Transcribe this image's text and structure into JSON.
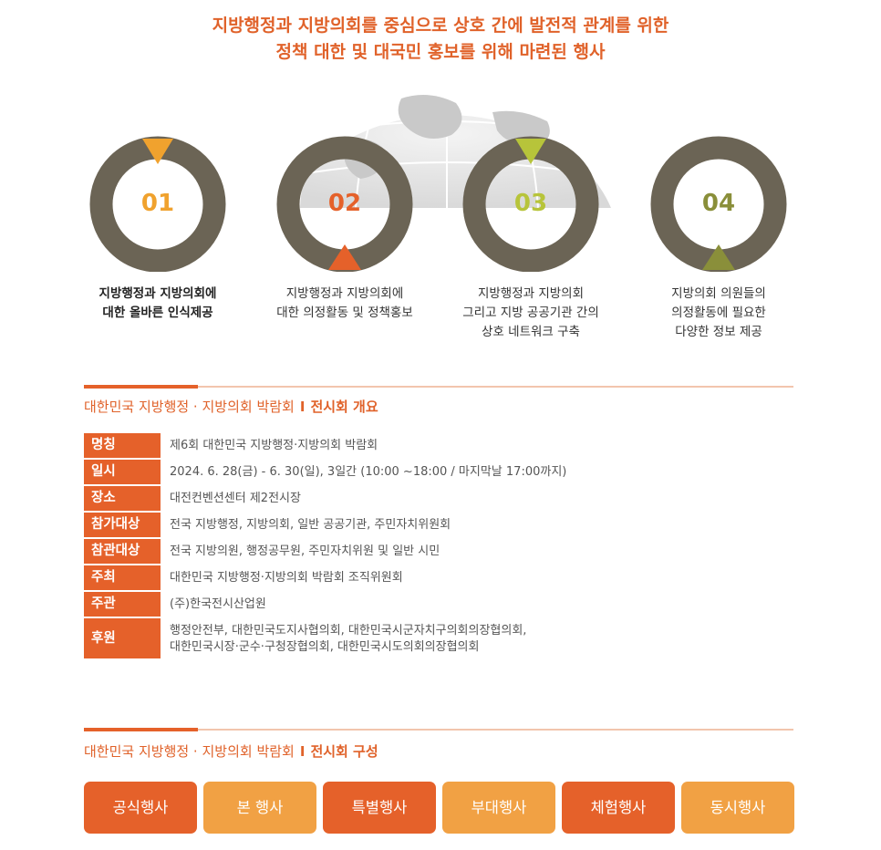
{
  "headline": {
    "line1": "지방행정과 지방의회를 중심으로 상호 간에 발전적 관계를 위한",
    "line2": "정책 대한 및 대국민 홍보를 위해 마련된 행사"
  },
  "colors": {
    "accent": "#e5612a",
    "accent_light": "#f1a144",
    "ring": "#6b6455",
    "marker_orange": "#f0a22e",
    "marker_red": "#e5612a",
    "marker_lime": "#b7c43a",
    "marker_olive": "#8a8f3a"
  },
  "steps": [
    {
      "number": "01",
      "lines": [
        "지방행정과 지방의회에",
        "대한 올바른 인식제공"
      ],
      "num_color": "#f0a22e",
      "marker": "top",
      "marker_color": "#f0a22e"
    },
    {
      "number": "02",
      "lines": [
        "지방행정과 지방의회에",
        "대한 의정활동 및 정책홍보"
      ],
      "num_color": "#e5612a",
      "marker": "bottom",
      "marker_color": "#e5612a"
    },
    {
      "number": "03",
      "lines": [
        "지방행정과 지방의회",
        "그리고 지방 공공기관 간의",
        "상호 네트워크 구축"
      ],
      "num_color": "#b7c43a",
      "marker": "top",
      "marker_color": "#b7c43a"
    },
    {
      "number": "04",
      "lines": [
        "지방의회 의원들의",
        "의정활동에 필요한",
        "다양한 정보 제공"
      ],
      "num_color": "#8a8f3a",
      "marker": "bottom",
      "marker_color": "#8a8f3a"
    }
  ],
  "overview": {
    "title_prefix": "대한민국 지방행정 · 지방의회 박람회",
    "title_sep": "I",
    "title_main": "전시회 개요",
    "rows": [
      {
        "label": "명칭",
        "value": "제6회 대한민국 지방행정·지방의회 박람회"
      },
      {
        "label": "일시",
        "value": "2024. 6. 28(금) - 6. 30(일), 3일간 (10:00 ~18:00 / 마지막날 17:00까지)"
      },
      {
        "label": "장소",
        "value": "대전컨벤션센터 제2전시장"
      },
      {
        "label": "참가대상",
        "value": "전국 지방행정, 지방의회, 일반 공공기관, 주민자치위원회"
      },
      {
        "label": "참관대상",
        "value": "전국 지방의원, 행정공무원, 주민자치위원 및 일반 시민"
      },
      {
        "label": "주최",
        "value": "대한민국 지방행정·지방의회 박람회 조직위원회"
      },
      {
        "label": "주관",
        "value": "(주)한국전시산업원"
      }
    ],
    "support": {
      "label": "후원",
      "line1": "행정안전부, 대한민국도지사협의회, 대한민국시군자치구의회의장협의회,",
      "line2": "대한민국시장·군수·구청장협의회, 대한민국시도의회의장협의회"
    }
  },
  "composition": {
    "title_prefix": "대한민국 지방행정 · 지방의회 박람회",
    "title_sep": "I",
    "title_main": "전시회 구성",
    "buttons": [
      {
        "label": "공식행사",
        "style": "dark"
      },
      {
        "label": "본 행사",
        "style": "light"
      },
      {
        "label": "특별행사",
        "style": "dark"
      },
      {
        "label": "부대행사",
        "style": "light"
      },
      {
        "label": "체험행사",
        "style": "dark"
      },
      {
        "label": "동시행사",
        "style": "light"
      }
    ]
  }
}
